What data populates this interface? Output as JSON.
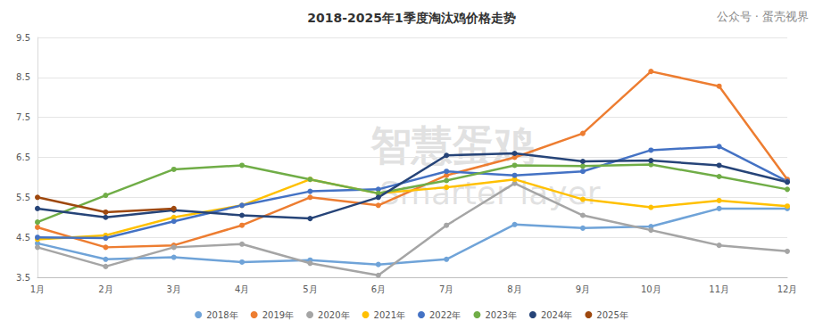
{
  "chart_data": {
    "type": "line",
    "title": "2018-2025年1季度淘汰鸡价格走势",
    "annotations": [
      "智慧蛋鸡",
      "Smarter layer",
      "公众号 · 蛋壳视界"
    ],
    "categories": [
      "1月",
      "2月",
      "3月",
      "4月",
      "5月",
      "6月",
      "7月",
      "8月",
      "9月",
      "10月",
      "11月",
      "12月"
    ],
    "series": [
      {
        "name": "2018年",
        "color": "#6fa3d8",
        "values": [
          4.35,
          3.95,
          4.0,
          3.88,
          3.93,
          3.82,
          3.95,
          4.82,
          4.73,
          4.77,
          5.22,
          5.22
        ]
      },
      {
        "name": "2019年",
        "color": "#ed7d31",
        "values": [
          4.75,
          4.25,
          4.3,
          4.8,
          5.5,
          5.3,
          6.05,
          6.5,
          7.1,
          8.65,
          8.28,
          5.95
        ]
      },
      {
        "name": "2020年",
        "color": "#a5a5a5",
        "values": [
          4.25,
          3.77,
          4.25,
          4.33,
          3.85,
          3.55,
          4.8,
          5.85,
          5.05,
          4.68,
          4.3,
          4.15
        ]
      },
      {
        "name": "2021年",
        "color": "#ffc000",
        "values": [
          4.45,
          4.55,
          5.0,
          5.3,
          5.95,
          5.6,
          5.75,
          5.95,
          5.45,
          5.25,
          5.42,
          5.28
        ]
      },
      {
        "name": "2022年",
        "color": "#4472c4",
        "values": [
          4.5,
          4.48,
          4.9,
          5.3,
          5.65,
          5.7,
          6.15,
          6.05,
          6.15,
          6.68,
          6.77,
          5.9
        ]
      },
      {
        "name": "2023年",
        "color": "#70ad47",
        "values": [
          4.88,
          5.55,
          6.2,
          6.3,
          5.95,
          5.6,
          5.92,
          6.3,
          6.28,
          6.32,
          6.02,
          5.7
        ]
      },
      {
        "name": "2024年",
        "color": "#264478",
        "values": [
          5.22,
          5.0,
          5.18,
          5.05,
          4.97,
          5.5,
          6.55,
          6.6,
          6.4,
          6.42,
          6.3,
          5.88
        ]
      },
      {
        "name": "2025年",
        "color": "#9e480e",
        "values": [
          5.5,
          5.13,
          5.22,
          null,
          null,
          null,
          null,
          null,
          null,
          null,
          null,
          null
        ]
      }
    ],
    "ylim": [
      3.5,
      9.5
    ],
    "yticks": [
      3.5,
      4.5,
      5.5,
      6.5,
      7.5,
      8.5,
      9.5
    ],
    "grid": true,
    "legend": "bottom",
    "marker": "circle"
  }
}
